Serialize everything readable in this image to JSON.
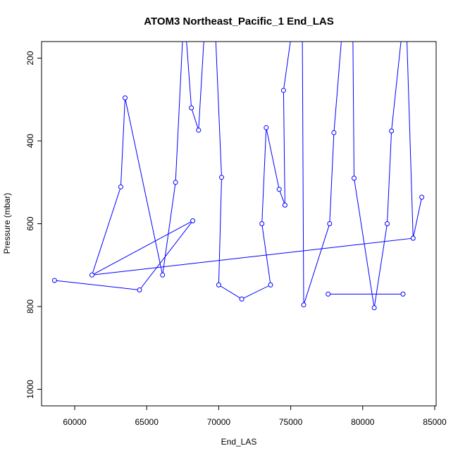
{
  "chart_data": {
    "type": "line",
    "title": "ATOM3 Northeast_Pacific_1 End_LAS",
    "xlabel": "End_LAS",
    "ylabel": "Pressure (mbar)",
    "xlim": [
      57700,
      85100
    ],
    "ylim": [
      1040,
      160
    ],
    "y_reversed": true,
    "x_ticks": [
      60000,
      65000,
      70000,
      75000,
      80000,
      85000
    ],
    "x_tick_labels": [
      "60000",
      "65000",
      "70000",
      "75000",
      "80000",
      "85000"
    ],
    "y_ticks": [
      200,
      400,
      600,
      800,
      1000
    ],
    "y_tick_labels": [
      "200",
      "400",
      "600",
      "800",
      "1000"
    ],
    "grid": false,
    "colors": {
      "series": "#0000ff",
      "axis": "#000000",
      "background": "#ffffff"
    },
    "series": [
      {
        "points": [
          [
            58600,
            737
          ],
          [
            64500,
            760
          ],
          [
            68200,
            593
          ],
          [
            61200,
            724
          ],
          [
            63200,
            511
          ],
          [
            63500,
            296
          ],
          [
            66100,
            724
          ],
          [
            67000,
            500
          ],
          [
            67600,
            80
          ],
          [
            68100,
            320
          ],
          [
            68600,
            374
          ],
          [
            69100,
            80
          ],
          [
            69700,
            80
          ],
          [
            70200,
            488
          ],
          [
            70000,
            748
          ],
          [
            71600,
            782
          ],
          [
            73600,
            748
          ],
          [
            73000,
            600
          ],
          [
            73300,
            368
          ],
          [
            74200,
            517
          ],
          [
            74600,
            555
          ],
          [
            74500,
            278
          ],
          [
            75300,
            80
          ],
          [
            75800,
            80
          ],
          [
            75900,
            796
          ],
          [
            77700,
            600
          ],
          [
            78000,
            380
          ],
          [
            78700,
            80
          ],
          [
            79300,
            80
          ],
          [
            79400,
            490
          ],
          [
            80800,
            803
          ],
          [
            81700,
            600
          ],
          [
            82000,
            376
          ],
          [
            82900,
            80
          ],
          [
            83000,
            80
          ],
          [
            83500,
            635
          ],
          [
            84100,
            536
          ],
          [
            83500,
            635
          ],
          [
            61200,
            724
          ]
        ],
        "markers": [
          [
            58600,
            737
          ],
          [
            64500,
            760
          ],
          [
            68200,
            593
          ],
          [
            61200,
            724
          ],
          [
            63200,
            511
          ],
          [
            63500,
            296
          ],
          [
            66100,
            724
          ],
          [
            67000,
            500
          ],
          [
            68100,
            320
          ],
          [
            68600,
            374
          ],
          [
            70200,
            488
          ],
          [
            70000,
            748
          ],
          [
            71600,
            782
          ],
          [
            73600,
            748
          ],
          [
            73000,
            600
          ],
          [
            73300,
            368
          ],
          [
            74200,
            517
          ],
          [
            74600,
            555
          ],
          [
            74500,
            278
          ],
          [
            75900,
            796
          ],
          [
            77700,
            600
          ],
          [
            78000,
            380
          ],
          [
            79400,
            490
          ],
          [
            80800,
            803
          ],
          [
            81700,
            600
          ],
          [
            82000,
            376
          ],
          [
            83500,
            635
          ],
          [
            84100,
            536
          ],
          [
            77600,
            770
          ],
          [
            82800,
            770
          ]
        ],
        "extra_segments": [
          [
            [
              77600,
              770
            ],
            [
              82800,
              770
            ]
          ]
        ]
      }
    ]
  }
}
